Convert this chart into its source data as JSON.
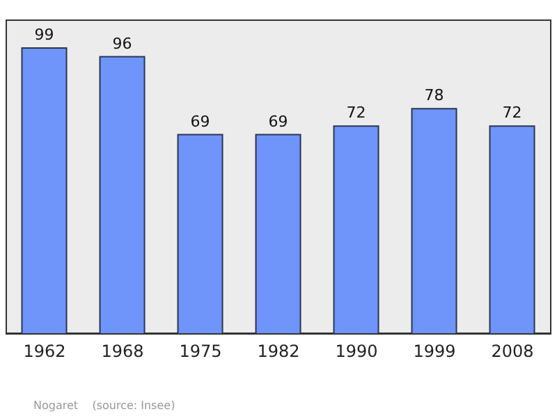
{
  "chart_data": {
    "type": "bar",
    "categories": [
      "1962",
      "1968",
      "1975",
      "1982",
      "1990",
      "1999",
      "2008"
    ],
    "values": [
      99,
      96,
      69,
      69,
      72,
      78,
      72
    ],
    "color": "#6f95fb",
    "data_labels": true,
    "annotations": [
      "Nogaret    (source: Insee)"
    ]
  }
}
